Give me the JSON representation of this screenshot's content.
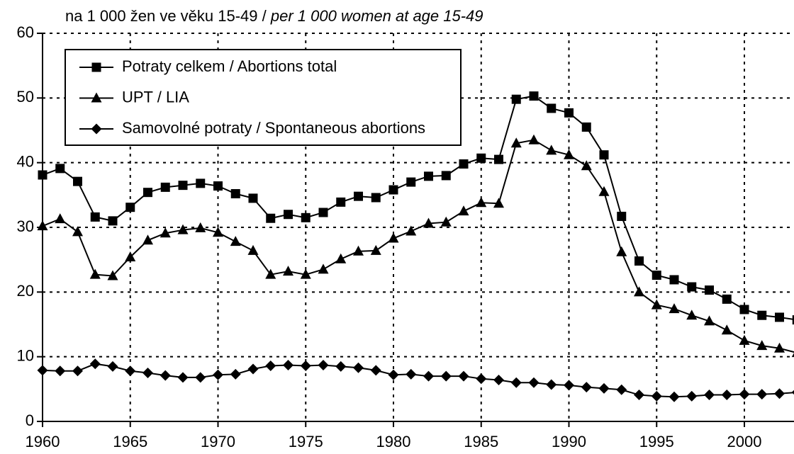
{
  "chart_data": {
    "type": "line",
    "ylabel": [
      "na 1 000 žen ve věku 15-49 / ",
      "per 1 000 women at age 15-49"
    ],
    "x": [
      1960,
      1961,
      1962,
      1963,
      1964,
      1965,
      1966,
      1967,
      1968,
      1969,
      1970,
      1971,
      1972,
      1973,
      1974,
      1975,
      1976,
      1977,
      1978,
      1979,
      1980,
      1981,
      1982,
      1983,
      1984,
      1985,
      1986,
      1987,
      1988,
      1989,
      1990,
      1991,
      1992,
      1993,
      1994,
      1995,
      1996,
      1997,
      1998,
      1999,
      2000,
      2001,
      2002,
      2003
    ],
    "series": [
      {
        "name": "Potraty celkem / Abortions total",
        "color": "#000000",
        "marker": "square",
        "values": [
          38.1,
          39.1,
          37.1,
          31.6,
          31.0,
          33.1,
          35.4,
          36.2,
          36.5,
          36.8,
          36.4,
          35.2,
          34.5,
          31.4,
          32.0,
          31.5,
          32.3,
          33.9,
          34.8,
          34.6,
          35.8,
          37.0,
          37.9,
          38.0,
          39.8,
          40.7,
          40.5,
          49.8,
          50.3,
          48.4,
          47.7,
          45.5,
          41.2,
          31.7,
          24.8,
          22.6,
          21.9,
          20.8,
          20.3,
          18.9,
          17.3,
          16.4,
          16.1,
          15.7
        ]
      },
      {
        "name": "UPT / LIA",
        "color": "#000000",
        "marker": "triangle",
        "values": [
          30.2,
          31.3,
          29.3,
          22.7,
          22.5,
          25.4,
          28.0,
          29.1,
          29.6,
          29.9,
          29.2,
          27.8,
          26.4,
          22.7,
          23.2,
          22.7,
          23.5,
          25.1,
          26.3,
          26.4,
          28.3,
          29.4,
          30.6,
          30.8,
          32.5,
          33.8,
          33.7,
          43.0,
          43.5,
          41.9,
          41.2,
          39.5,
          35.5,
          26.2,
          20.0,
          18.0,
          17.4,
          16.4,
          15.5,
          14.1,
          12.5,
          11.7,
          11.3,
          10.6
        ]
      },
      {
        "name": "Samovolné potraty / Spontaneous abortions",
        "color": "#000000",
        "marker": "diamond",
        "values": [
          7.9,
          7.8,
          7.8,
          8.9,
          8.5,
          7.8,
          7.5,
          7.1,
          6.8,
          6.8,
          7.2,
          7.3,
          8.1,
          8.6,
          8.7,
          8.6,
          8.7,
          8.5,
          8.3,
          7.9,
          7.2,
          7.3,
          7.0,
          7.0,
          7.0,
          6.6,
          6.4,
          6.0,
          6.0,
          5.7,
          5.6,
          5.3,
          5.1,
          4.9,
          4.1,
          3.9,
          3.8,
          3.9,
          4.1,
          4.1,
          4.2,
          4.2,
          4.3,
          4.5
        ]
      }
    ],
    "xlim": [
      1960,
      2005
    ],
    "xticks": [
      1960,
      1965,
      1970,
      1975,
      1980,
      1985,
      1990,
      1995,
      2000
    ],
    "ylim": [
      0,
      60
    ],
    "yticks": [
      0,
      10,
      20,
      30,
      40,
      50,
      60
    ],
    "grid": true,
    "legend": "upper left"
  }
}
